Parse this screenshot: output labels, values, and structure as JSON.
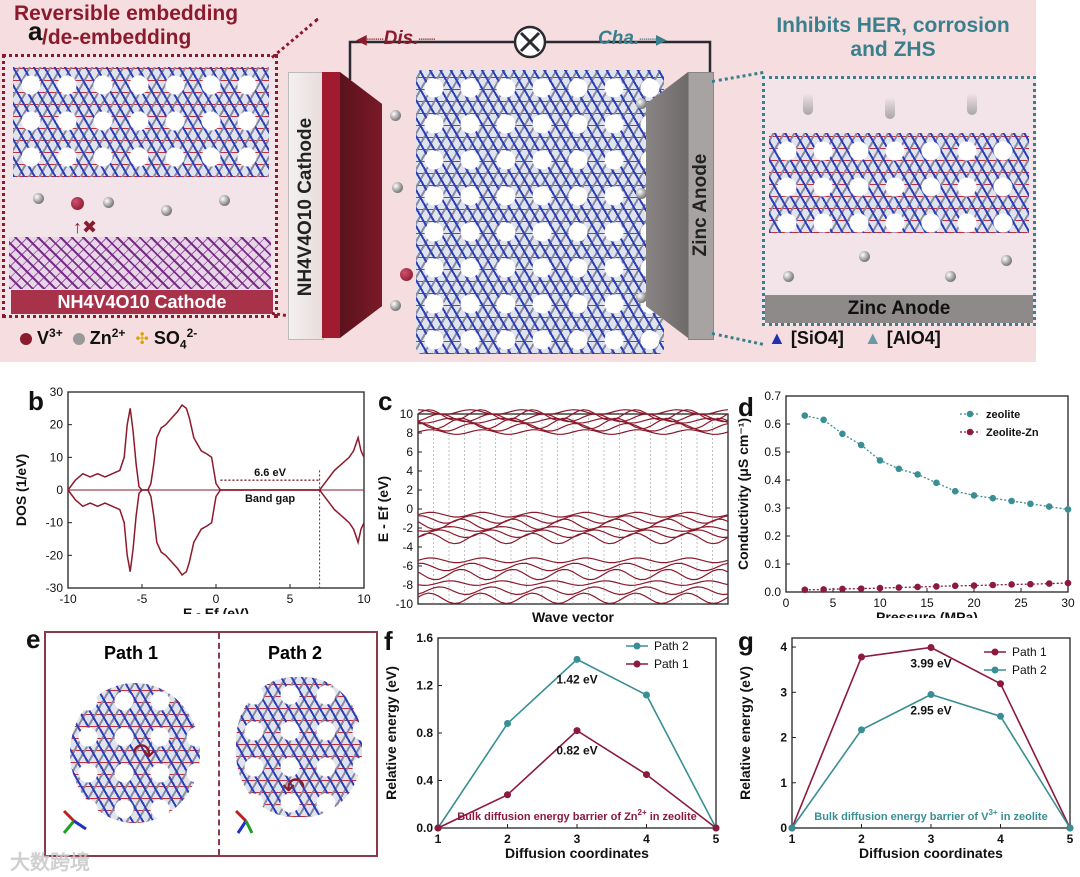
{
  "panel_letters": {
    "a": "a",
    "b": "b",
    "c": "c",
    "d": "d",
    "e": "e",
    "f": "f",
    "g": "g"
  },
  "panel_a": {
    "left_title_line1": "Reversible embedding",
    "left_title_line2": "/de-embedding",
    "right_title_line1": "Inhibits HER, corrosion",
    "right_title_line2": "and ZHS",
    "dis_label": "Dis.",
    "cha_label": "Cha.",
    "cathode_bar_label": "NH4V4O10 Cathode",
    "cathode_slab_label": "NH4V4O10 Cathode",
    "anode_bar_label": "Zinc Anode",
    "anode_slab_label": "Zinc Anode",
    "legend": {
      "v3": "V",
      "v3_sup": "3+",
      "zn": "Zn",
      "zn_sup": "2+",
      "so4": "SO",
      "so4_sub": "4",
      "so4_sup": "2-",
      "sio4": "[SiO4]",
      "alo4": "[AlO4]"
    },
    "colors": {
      "background": "#f6dde0",
      "maroon": "#8b1a2c",
      "teal": "#3a7f8c",
      "cathode_dark": "#6b1a24",
      "anode_gray": "#8f8a8a"
    }
  },
  "panel_e": {
    "path1": "Path 1",
    "path2": "Path 2"
  },
  "watermark": "大数跨境",
  "chart_data": [
    {
      "id": "b",
      "type": "line",
      "title": "",
      "xlabel": "E - Ef (eV)",
      "ylabel": "DOS (1/eV)",
      "xlim": [
        -10,
        10
      ],
      "ylim": [
        -30,
        30
      ],
      "xticks": [
        -10,
        -5,
        0,
        5,
        10
      ],
      "yticks": [
        -30,
        -20,
        -10,
        0,
        10,
        20,
        30
      ],
      "series": [
        {
          "name": "DOS up",
          "x": [
            -10,
            -9.5,
            -9,
            -8.5,
            -8,
            -7.5,
            -7,
            -6.5,
            -6.2,
            -6,
            -5.8,
            -5.6,
            -5.4,
            -5.2,
            -5,
            -4.6,
            -4.4,
            -4.2,
            -4,
            -3.7,
            -3.4,
            -3,
            -2.6,
            -2.3,
            -2,
            -1.8,
            -1.5,
            -1,
            -0.6,
            -0.3,
            0,
            0.3,
            7,
            7.5,
            8,
            8.5,
            9,
            9.3,
            9.6,
            9.8,
            10
          ],
          "y": [
            0,
            3,
            5,
            4,
            5,
            4,
            5,
            6,
            10,
            20,
            25,
            18,
            8,
            1,
            0,
            0,
            2,
            8,
            16,
            19,
            20,
            22,
            24,
            26,
            25,
            22,
            16,
            12,
            11,
            10,
            2,
            0,
            0,
            3,
            6,
            8,
            10,
            12,
            16,
            12,
            10
          ]
        },
        {
          "name": "DOS down",
          "x": [
            -10,
            -9.5,
            -9,
            -8.5,
            -8,
            -7.5,
            -7,
            -6.5,
            -6.2,
            -6,
            -5.8,
            -5.6,
            -5.4,
            -5.2,
            -5,
            -4.6,
            -4.4,
            -4.2,
            -4,
            -3.7,
            -3.4,
            -3,
            -2.6,
            -2.3,
            -2,
            -1.8,
            -1.5,
            -1,
            -0.6,
            -0.3,
            0,
            0.3,
            7,
            7.5,
            8,
            8.5,
            9,
            9.3,
            9.6,
            9.8,
            10
          ],
          "y": [
            0,
            -3,
            -5,
            -4,
            -5,
            -4,
            -5,
            -6,
            -10,
            -20,
            -25,
            -18,
            -8,
            -1,
            0,
            0,
            -2,
            -8,
            -16,
            -19,
            -20,
            -22,
            -24,
            -26,
            -25,
            -22,
            -16,
            -12,
            -11,
            -10,
            -2,
            0,
            0,
            -3,
            -6,
            -8,
            -10,
            -12,
            -16,
            -12,
            -10
          ]
        }
      ],
      "annotations": {
        "gap_value": "6.6 eV",
        "gap_label": "Band gap",
        "gap_range": [
          0.3,
          7
        ]
      }
    },
    {
      "id": "c",
      "type": "line",
      "title": "",
      "xlabel": "Wave vector",
      "ylabel": "E - Ef (eV)",
      "ylim": [
        -10,
        10
      ],
      "yticks": [
        -10,
        -8,
        -6,
        -4,
        -2,
        0,
        2,
        4,
        6,
        8,
        10
      ],
      "bands": {
        "conduction": [
          8.1,
          8.6,
          9.0,
          9.3,
          9.6,
          9.9,
          10.2
        ],
        "valence_upper": [
          -0.6,
          -1.1,
          -1.6,
          -2.1,
          -2.6,
          -3.1
        ],
        "valence_lower": [
          -5.4,
          -6.1,
          -6.9,
          -7.8,
          -8.6,
          -9.4
        ]
      }
    },
    {
      "id": "d",
      "type": "line",
      "title": "",
      "xlabel": "Pressure (MPa)",
      "ylabel": "Conductivity (μS cm⁻¹)",
      "xlim": [
        0,
        30
      ],
      "ylim": [
        0,
        0.7
      ],
      "xticks": [
        0,
        5,
        10,
        15,
        20,
        25,
        30
      ],
      "yticks": [
        0.0,
        0.1,
        0.2,
        0.3,
        0.4,
        0.5,
        0.6,
        0.7
      ],
      "series": [
        {
          "name": "zeolite",
          "color": "#3a8f94",
          "x": [
            2,
            4,
            6,
            8,
            10,
            12,
            14,
            16,
            18,
            20,
            22,
            24,
            26,
            28,
            30
          ],
          "values": [
            0.63,
            0.615,
            0.565,
            0.525,
            0.47,
            0.44,
            0.42,
            0.39,
            0.36,
            0.345,
            0.335,
            0.325,
            0.315,
            0.305,
            0.295
          ]
        },
        {
          "name": "Zeolite-Zn",
          "color": "#8b1a3c",
          "x": [
            2,
            4,
            6,
            8,
            10,
            12,
            14,
            16,
            18,
            20,
            22,
            24,
            26,
            28,
            30
          ],
          "values": [
            0.008,
            0.009,
            0.011,
            0.012,
            0.014,
            0.016,
            0.018,
            0.02,
            0.022,
            0.023,
            0.025,
            0.027,
            0.028,
            0.03,
            0.032
          ]
        }
      ]
    },
    {
      "id": "f",
      "type": "line",
      "title": "",
      "xlabel": "Diffusion coordinates",
      "ylabel": "Relative energy (eV)",
      "xlim": [
        1,
        5
      ],
      "ylim": [
        0,
        1.6
      ],
      "xticks": [
        1,
        2,
        3,
        4,
        5
      ],
      "yticks": [
        0.0,
        0.4,
        0.8,
        1.2,
        1.6
      ],
      "series": [
        {
          "name": "Path 2",
          "color": "#3a8f94",
          "x": [
            1,
            2,
            3,
            4,
            5
          ],
          "values": [
            0,
            0.88,
            1.42,
            1.12,
            0
          ]
        },
        {
          "name": "Path 1",
          "color": "#8b1a3c",
          "x": [
            1,
            2,
            3,
            4,
            5
          ],
          "values": [
            0,
            0.28,
            0.82,
            0.45,
            0
          ]
        }
      ],
      "annotations": {
        "peak_path2": "1.42 eV",
        "peak_path1": "0.82 eV",
        "caption": "Bulk diffusion energy barrier of Zn",
        "caption_sup": "2+",
        "caption_tail": " in zeolite"
      }
    },
    {
      "id": "g",
      "type": "line",
      "title": "",
      "xlabel": "Diffusion coordinates",
      "ylabel": "Relative energy (eV)",
      "xlim": [
        1,
        5
      ],
      "ylim": [
        0,
        4.2
      ],
      "xticks": [
        1,
        2,
        3,
        4,
        5
      ],
      "yticks": [
        0,
        1,
        2,
        3,
        4
      ],
      "series": [
        {
          "name": "Path 1",
          "color": "#8b1a3c",
          "x": [
            1,
            2,
            3,
            4,
            5
          ],
          "values": [
            0,
            3.78,
            3.99,
            3.19,
            0
          ]
        },
        {
          "name": "Path 2",
          "color": "#3a8f94",
          "x": [
            1,
            2,
            3,
            4,
            5
          ],
          "values": [
            0,
            2.17,
            2.95,
            2.47,
            0
          ]
        }
      ],
      "annotations": {
        "peak_path1": "3.99 eV",
        "peak_path2": "2.95 eV",
        "caption": "Bulk diffusion energy barrier of V",
        "caption_sup": "3+",
        "caption_tail": " in zeolite"
      }
    }
  ]
}
